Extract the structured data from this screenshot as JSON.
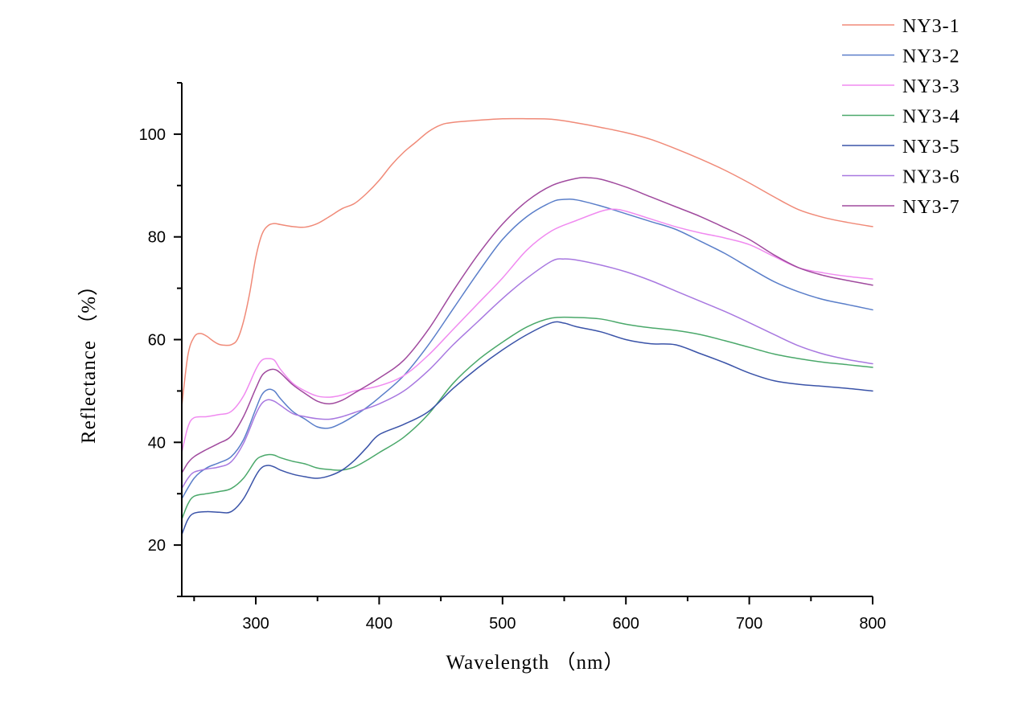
{
  "chart_data": {
    "type": "line",
    "title": "",
    "xlabel": "Wavelength （nm）",
    "ylabel": "Reflectance （%）",
    "xlim": [
      240,
      800
    ],
    "ylim": [
      10,
      110
    ],
    "xticks": [
      300,
      400,
      500,
      600,
      700,
      800
    ],
    "yticks": [
      20,
      40,
      60,
      80,
      100
    ],
    "legend_position": "top-right",
    "series": [
      {
        "name": "NY3-1",
        "color": "#f08a78",
        "points": [
          [
            240,
            47
          ],
          [
            245,
            57
          ],
          [
            250,
            60.5
          ],
          [
            255,
            61.2
          ],
          [
            260,
            60.7
          ],
          [
            265,
            59.8
          ],
          [
            270,
            59.1
          ],
          [
            275,
            58.9
          ],
          [
            280,
            59
          ],
          [
            285,
            60
          ],
          [
            290,
            63.5
          ],
          [
            295,
            69
          ],
          [
            300,
            76
          ],
          [
            305,
            80.5
          ],
          [
            310,
            82.2
          ],
          [
            315,
            82.6
          ],
          [
            320,
            82.4
          ],
          [
            330,
            82
          ],
          [
            340,
            81.9
          ],
          [
            350,
            82.6
          ],
          [
            360,
            84
          ],
          [
            370,
            85.5
          ],
          [
            380,
            86.5
          ],
          [
            390,
            88.5
          ],
          [
            400,
            91
          ],
          [
            410,
            94
          ],
          [
            420,
            96.5
          ],
          [
            430,
            98.5
          ],
          [
            440,
            100.5
          ],
          [
            450,
            101.8
          ],
          [
            460,
            102.3
          ],
          [
            480,
            102.7
          ],
          [
            500,
            103
          ],
          [
            520,
            103
          ],
          [
            540,
            102.9
          ],
          [
            560,
            102.2
          ],
          [
            580,
            101.3
          ],
          [
            600,
            100.3
          ],
          [
            620,
            99
          ],
          [
            640,
            97.2
          ],
          [
            660,
            95.2
          ],
          [
            680,
            93
          ],
          [
            700,
            90.5
          ],
          [
            720,
            87.8
          ],
          [
            740,
            85.3
          ],
          [
            760,
            83.8
          ],
          [
            780,
            82.8
          ],
          [
            800,
            82
          ]
        ]
      },
      {
        "name": "NY3-2",
        "color": "#5a7ec9",
        "points": [
          [
            240,
            29
          ],
          [
            250,
            33
          ],
          [
            260,
            35
          ],
          [
            270,
            36
          ],
          [
            280,
            37.2
          ],
          [
            290,
            40.5
          ],
          [
            300,
            46.5
          ],
          [
            305,
            49.3
          ],
          [
            310,
            50.3
          ],
          [
            315,
            50
          ],
          [
            320,
            48.5
          ],
          [
            330,
            46
          ],
          [
            340,
            44.5
          ],
          [
            350,
            43
          ],
          [
            360,
            42.8
          ],
          [
            370,
            43.8
          ],
          [
            380,
            45.2
          ],
          [
            390,
            46.8
          ],
          [
            400,
            48.7
          ],
          [
            420,
            53
          ],
          [
            440,
            59
          ],
          [
            460,
            66
          ],
          [
            480,
            73
          ],
          [
            500,
            79.5
          ],
          [
            520,
            84
          ],
          [
            540,
            86.8
          ],
          [
            550,
            87.3
          ],
          [
            560,
            87.2
          ],
          [
            580,
            86
          ],
          [
            600,
            84.5
          ],
          [
            620,
            83
          ],
          [
            640,
            81.5
          ],
          [
            660,
            79.2
          ],
          [
            680,
            76.8
          ],
          [
            700,
            74
          ],
          [
            720,
            71.3
          ],
          [
            740,
            69.3
          ],
          [
            760,
            67.8
          ],
          [
            780,
            66.8
          ],
          [
            800,
            65.8
          ]
        ]
      },
      {
        "name": "NY3-3",
        "color": "#f08af0",
        "points": [
          [
            240,
            38
          ],
          [
            245,
            43
          ],
          [
            250,
            44.8
          ],
          [
            260,
            45
          ],
          [
            270,
            45.4
          ],
          [
            280,
            46
          ],
          [
            290,
            49
          ],
          [
            300,
            54.2
          ],
          [
            305,
            56
          ],
          [
            310,
            56.3
          ],
          [
            315,
            56
          ],
          [
            320,
            54.2
          ],
          [
            330,
            51.5
          ],
          [
            340,
            50
          ],
          [
            350,
            49
          ],
          [
            360,
            48.8
          ],
          [
            370,
            49.2
          ],
          [
            380,
            50
          ],
          [
            400,
            51
          ],
          [
            420,
            53
          ],
          [
            440,
            57
          ],
          [
            460,
            62
          ],
          [
            480,
            67
          ],
          [
            500,
            72
          ],
          [
            520,
            77.5
          ],
          [
            540,
            81.2
          ],
          [
            560,
            83.2
          ],
          [
            580,
            85
          ],
          [
            590,
            85.4
          ],
          [
            600,
            85
          ],
          [
            620,
            83.5
          ],
          [
            640,
            82
          ],
          [
            660,
            80.8
          ],
          [
            680,
            79.8
          ],
          [
            700,
            78.5
          ],
          [
            720,
            76.2
          ],
          [
            740,
            74
          ],
          [
            760,
            73
          ],
          [
            780,
            72.3
          ],
          [
            800,
            71.8
          ]
        ]
      },
      {
        "name": "NY3-4",
        "color": "#4aa86a",
        "points": [
          [
            240,
            25
          ],
          [
            245,
            28
          ],
          [
            250,
            29.5
          ],
          [
            260,
            30
          ],
          [
            270,
            30.4
          ],
          [
            280,
            31
          ],
          [
            290,
            33
          ],
          [
            300,
            36.5
          ],
          [
            305,
            37.3
          ],
          [
            310,
            37.6
          ],
          [
            315,
            37.5
          ],
          [
            320,
            37
          ],
          [
            330,
            36.3
          ],
          [
            340,
            35.8
          ],
          [
            350,
            35
          ],
          [
            360,
            34.7
          ],
          [
            370,
            34.6
          ],
          [
            380,
            35.2
          ],
          [
            390,
            36.5
          ],
          [
            400,
            38
          ],
          [
            420,
            41
          ],
          [
            440,
            45.5
          ],
          [
            460,
            51.5
          ],
          [
            480,
            56
          ],
          [
            500,
            59.5
          ],
          [
            520,
            62.5
          ],
          [
            540,
            64.2
          ],
          [
            560,
            64.3
          ],
          [
            580,
            64
          ],
          [
            600,
            63
          ],
          [
            620,
            62.3
          ],
          [
            640,
            61.8
          ],
          [
            660,
            61
          ],
          [
            680,
            59.8
          ],
          [
            700,
            58.5
          ],
          [
            720,
            57.2
          ],
          [
            740,
            56.3
          ],
          [
            760,
            55.6
          ],
          [
            780,
            55.1
          ],
          [
            800,
            54.6
          ]
        ]
      },
      {
        "name": "NY3-5",
        "color": "#3a53a8",
        "points": [
          [
            240,
            22
          ],
          [
            245,
            25
          ],
          [
            250,
            26.2
          ],
          [
            260,
            26.5
          ],
          [
            270,
            26.4
          ],
          [
            280,
            26.5
          ],
          [
            290,
            29
          ],
          [
            300,
            33.5
          ],
          [
            305,
            35.1
          ],
          [
            310,
            35.5
          ],
          [
            315,
            35.2
          ],
          [
            320,
            34.6
          ],
          [
            330,
            33.8
          ],
          [
            340,
            33.3
          ],
          [
            350,
            33
          ],
          [
            360,
            33.5
          ],
          [
            370,
            34.6
          ],
          [
            380,
            36.5
          ],
          [
            390,
            39
          ],
          [
            400,
            41.5
          ],
          [
            420,
            43.5
          ],
          [
            440,
            46
          ],
          [
            460,
            50.5
          ],
          [
            480,
            54.5
          ],
          [
            500,
            58
          ],
          [
            520,
            61
          ],
          [
            540,
            63.3
          ],
          [
            550,
            63.2
          ],
          [
            560,
            62.5
          ],
          [
            580,
            61.5
          ],
          [
            600,
            60
          ],
          [
            620,
            59.2
          ],
          [
            640,
            59
          ],
          [
            660,
            57.3
          ],
          [
            680,
            55.5
          ],
          [
            700,
            53.5
          ],
          [
            720,
            52
          ],
          [
            740,
            51.3
          ],
          [
            760,
            50.9
          ],
          [
            780,
            50.5
          ],
          [
            800,
            50
          ]
        ]
      },
      {
        "name": "NY3-6",
        "color": "#a878e0",
        "points": [
          [
            240,
            31
          ],
          [
            245,
            33
          ],
          [
            250,
            34.2
          ],
          [
            260,
            34.8
          ],
          [
            270,
            35.2
          ],
          [
            280,
            36.2
          ],
          [
            290,
            39.8
          ],
          [
            300,
            45.5
          ],
          [
            305,
            47.6
          ],
          [
            310,
            48.3
          ],
          [
            315,
            48
          ],
          [
            320,
            47.2
          ],
          [
            330,
            45.6
          ],
          [
            340,
            45
          ],
          [
            350,
            44.6
          ],
          [
            360,
            44.5
          ],
          [
            370,
            45
          ],
          [
            380,
            45.8
          ],
          [
            400,
            47.5
          ],
          [
            420,
            50
          ],
          [
            440,
            54
          ],
          [
            460,
            59
          ],
          [
            480,
            63.5
          ],
          [
            500,
            68
          ],
          [
            520,
            72
          ],
          [
            540,
            75.3
          ],
          [
            550,
            75.7
          ],
          [
            560,
            75.5
          ],
          [
            580,
            74.5
          ],
          [
            600,
            73.2
          ],
          [
            620,
            71.5
          ],
          [
            640,
            69.5
          ],
          [
            660,
            67.5
          ],
          [
            680,
            65.5
          ],
          [
            700,
            63.3
          ],
          [
            720,
            61
          ],
          [
            740,
            58.8
          ],
          [
            760,
            57.2
          ],
          [
            780,
            56.1
          ],
          [
            800,
            55.3
          ]
        ]
      },
      {
        "name": "NY3-7",
        "color": "#a04a9e",
        "points": [
          [
            240,
            34
          ],
          [
            245,
            36
          ],
          [
            250,
            37.2
          ],
          [
            260,
            38.6
          ],
          [
            270,
            39.8
          ],
          [
            280,
            41.2
          ],
          [
            290,
            45
          ],
          [
            300,
            50.5
          ],
          [
            305,
            53
          ],
          [
            310,
            54
          ],
          [
            315,
            54.2
          ],
          [
            320,
            53.5
          ],
          [
            330,
            51.2
          ],
          [
            340,
            49.5
          ],
          [
            350,
            48
          ],
          [
            360,
            47.5
          ],
          [
            370,
            48.2
          ],
          [
            380,
            49.6
          ],
          [
            400,
            52.5
          ],
          [
            420,
            56
          ],
          [
            440,
            62
          ],
          [
            460,
            69.5
          ],
          [
            480,
            76.5
          ],
          [
            500,
            82.5
          ],
          [
            520,
            87
          ],
          [
            540,
            90
          ],
          [
            560,
            91.4
          ],
          [
            570,
            91.5
          ],
          [
            580,
            91.2
          ],
          [
            600,
            89.7
          ],
          [
            620,
            87.8
          ],
          [
            640,
            85.9
          ],
          [
            660,
            84
          ],
          [
            680,
            81.8
          ],
          [
            700,
            79.5
          ],
          [
            720,
            76.5
          ],
          [
            740,
            74
          ],
          [
            760,
            72.5
          ],
          [
            780,
            71.5
          ],
          [
            800,
            70.6
          ]
        ]
      }
    ]
  }
}
